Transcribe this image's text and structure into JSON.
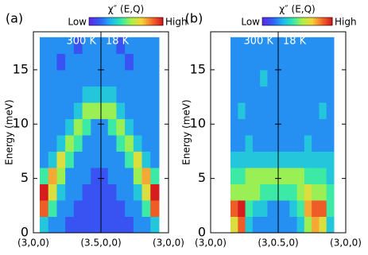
{
  "chart_data": [
    {
      "type": "heatmap",
      "title": "(a)",
      "y_label": "Energy (meV)",
      "colorbar": {
        "title": "χ″ (E,Q)",
        "low_label": "Low",
        "high_label": "High"
      },
      "annotations": [
        "300 K",
        "18 K"
      ],
      "categories": [
        "(3,0,0)",
        "(3.5,0,0)",
        "(3,0,0)"
      ],
      "ylim": [
        0,
        18.5
      ],
      "yticks": [
        0,
        5,
        10,
        15
      ],
      "y_bins": [
        0,
        1.5,
        3,
        4.5,
        6,
        7.5,
        9,
        10.5,
        12,
        13.5,
        15,
        16.5,
        18
      ],
      "zlim": [
        0,
        9
      ],
      "colormap": [
        "#5b2ae8",
        "#2f5ff5",
        "#1fb5f0",
        "#2ee8b0",
        "#a8f04a",
        "#f5d53a",
        "#f5702a",
        "#d61c1c"
      ],
      "z": [
        [
          3,
          2,
          2,
          1,
          1,
          1,
          1,
          1,
          1,
          1,
          1,
          2,
          2,
          3
        ],
        [
          8,
          4,
          2,
          2,
          1,
          1,
          1,
          1,
          1,
          1,
          2,
          2,
          4,
          8
        ],
        [
          9,
          6,
          3,
          2,
          2,
          1,
          1,
          1,
          1,
          2,
          2,
          3,
          6,
          9
        ],
        [
          4,
          7,
          5,
          2,
          2,
          2,
          1,
          1,
          2,
          2,
          2,
          5,
          7,
          4
        ],
        [
          2,
          3,
          6,
          4,
          2,
          2,
          2,
          2,
          2,
          2,
          4,
          6,
          3,
          2
        ],
        [
          2,
          2,
          3,
          5,
          4,
          2,
          2,
          2,
          2,
          4,
          5,
          3,
          2,
          2
        ],
        [
          2,
          2,
          2,
          3,
          5,
          4,
          2,
          2,
          4,
          5,
          3,
          2,
          2,
          2
        ],
        [
          2,
          2,
          2,
          2,
          3,
          5,
          5,
          5,
          5,
          3,
          2,
          2,
          2,
          2
        ],
        [
          2,
          2,
          2,
          2,
          2,
          3,
          3,
          3,
          3,
          2,
          2,
          2,
          2,
          2
        ],
        [
          2,
          2,
          2,
          2,
          2,
          2,
          2,
          2,
          2,
          2,
          2,
          2,
          2,
          2
        ],
        [
          2,
          2,
          1,
          2,
          2,
          2,
          2,
          2,
          2,
          2,
          1,
          2,
          2,
          2
        ],
        [
          2,
          2,
          2,
          2,
          1,
          2,
          2,
          2,
          2,
          1,
          2,
          2,
          2,
          2
        ]
      ]
    },
    {
      "type": "heatmap",
      "title": "(b)",
      "y_label": "Energy (meV)",
      "colorbar": {
        "title": "χ″ (E,Q)",
        "low_label": "Low",
        "high_label": "High"
      },
      "annotations": [
        "300 K",
        "18 K"
      ],
      "categories": [
        "(3,0,0)",
        "(3,0.5,0)",
        "(3,0,0)"
      ],
      "ylim": [
        0,
        18.5
      ],
      "yticks": [
        0,
        5,
        10,
        15
      ],
      "y_bins": [
        0,
        1.5,
        3,
        4.5,
        6,
        7.5,
        9,
        10.5,
        12,
        13.5,
        15,
        16.5,
        18
      ],
      "zlim": [
        0,
        9
      ],
      "colormap": [
        "#5b2ae8",
        "#2f5ff5",
        "#1fb5f0",
        "#2ee8b0",
        "#a8f04a",
        "#f5d53a",
        "#f5702a",
        "#d61c1c"
      ],
      "z": [
        [
          6,
          8,
          3,
          2,
          2,
          2,
          2,
          2,
          2,
          3,
          5,
          7,
          6,
          3
        ],
        [
          8,
          9,
          4,
          3,
          3,
          2,
          2,
          2,
          3,
          4,
          7,
          8,
          8,
          4
        ],
        [
          5,
          5,
          5,
          5,
          4,
          4,
          4,
          4,
          4,
          5,
          6,
          5,
          5,
          4
        ],
        [
          4,
          4,
          5,
          5,
          5,
          5,
          5,
          5,
          5,
          5,
          4,
          4,
          4,
          3
        ],
        [
          3,
          3,
          3,
          3,
          3,
          3,
          3,
          3,
          3,
          3,
          3,
          3,
          3,
          3
        ],
        [
          2,
          2,
          3,
          2,
          2,
          2,
          2,
          2,
          2,
          2,
          3,
          2,
          2,
          2
        ],
        [
          2,
          2,
          2,
          2,
          2,
          2,
          2,
          2,
          2,
          2,
          2,
          2,
          2,
          2
        ],
        [
          2,
          3,
          2,
          2,
          2,
          2,
          2,
          2,
          2,
          2,
          2,
          2,
          3,
          2
        ],
        [
          2,
          2,
          2,
          2,
          2,
          2,
          2,
          2,
          2,
          2,
          2,
          2,
          2,
          2
        ],
        [
          2,
          2,
          2,
          2,
          3,
          2,
          2,
          2,
          2,
          2,
          2,
          2,
          2,
          2
        ],
        [
          2,
          2,
          2,
          2,
          2,
          2,
          2,
          2,
          2,
          2,
          2,
          2,
          2,
          2
        ],
        [
          2,
          2,
          2,
          2,
          2,
          2,
          2,
          2,
          2,
          2,
          2,
          2,
          2,
          2
        ]
      ]
    }
  ]
}
